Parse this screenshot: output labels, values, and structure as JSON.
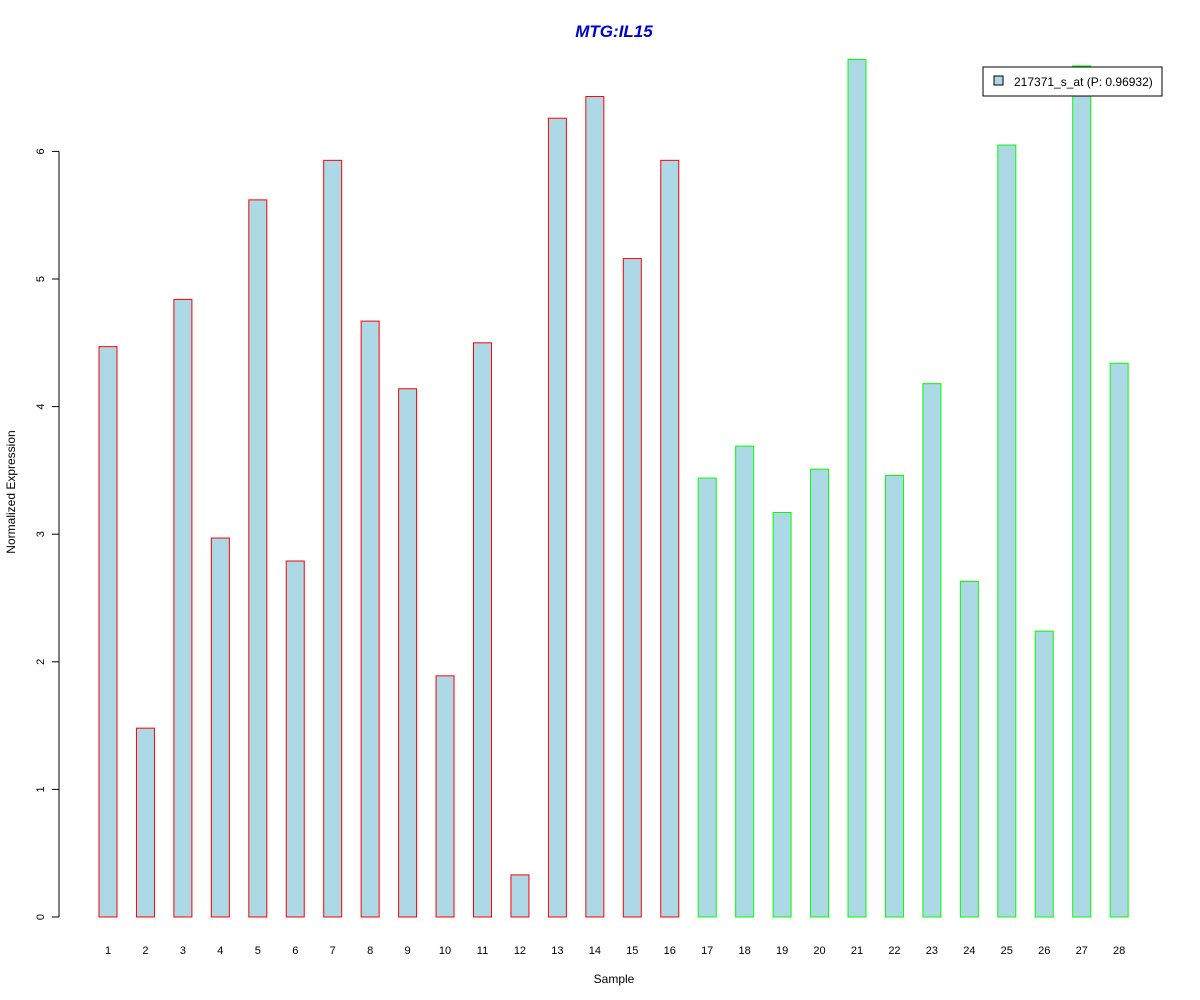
{
  "chart_data": {
    "type": "bar",
    "title": "MTG:IL15",
    "xlabel": "Sample",
    "ylabel": "Normalized Expression",
    "ylim": [
      0,
      6.75
    ],
    "yticks": [
      0,
      1,
      2,
      3,
      4,
      5,
      6
    ],
    "grid": false,
    "legend_position": "top-right",
    "categories": [
      "1",
      "2",
      "3",
      "4",
      "5",
      "6",
      "7",
      "8",
      "9",
      "10",
      "11",
      "12",
      "13",
      "14",
      "15",
      "16",
      "17",
      "18",
      "19",
      "20",
      "21",
      "22",
      "23",
      "24",
      "25",
      "26",
      "27",
      "28"
    ],
    "series": [
      {
        "name": "217371_s_at (P: 0.96932)",
        "values": [
          4.47,
          1.48,
          4.84,
          2.97,
          5.62,
          2.79,
          5.93,
          4.67,
          4.14,
          1.89,
          4.5,
          0.33,
          6.26,
          6.43,
          5.16,
          5.93,
          3.44,
          3.69,
          3.17,
          3.51,
          6.72,
          3.46,
          4.18,
          2.63,
          6.05,
          2.24,
          6.67,
          4.34
        ]
      }
    ],
    "group_colors": [
      "#ff0000",
      "#ff0000",
      "#ff0000",
      "#ff0000",
      "#ff0000",
      "#ff0000",
      "#ff0000",
      "#ff0000",
      "#ff0000",
      "#ff0000",
      "#ff0000",
      "#ff0000",
      "#ff0000",
      "#ff0000",
      "#ff0000",
      "#ff0000",
      "#00ff00",
      "#00ff00",
      "#00ff00",
      "#00ff00",
      "#00ff00",
      "#00ff00",
      "#00ff00",
      "#00ff00",
      "#00ff00",
      "#00ff00",
      "#00ff00",
      "#00ff00"
    ],
    "bar_fill": "#add8e6",
    "title_color": "#0000cd"
  }
}
